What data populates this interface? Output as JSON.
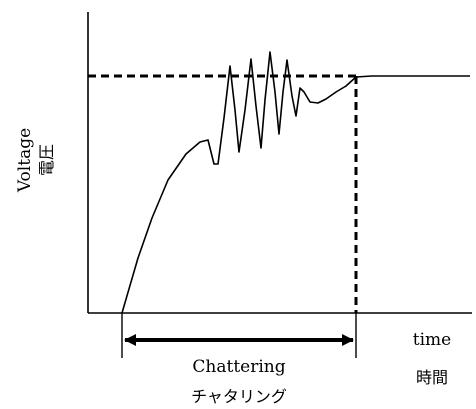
{
  "diagram": {
    "y_label_en": "Voltage",
    "y_label_ja": "電圧",
    "x_label_en": "time",
    "x_label_ja": "時間",
    "span_label_en": "Chattering",
    "span_label_ja": "チャタリング",
    "colors": {
      "line": "#000000",
      "background": "#ffffff"
    }
  }
}
